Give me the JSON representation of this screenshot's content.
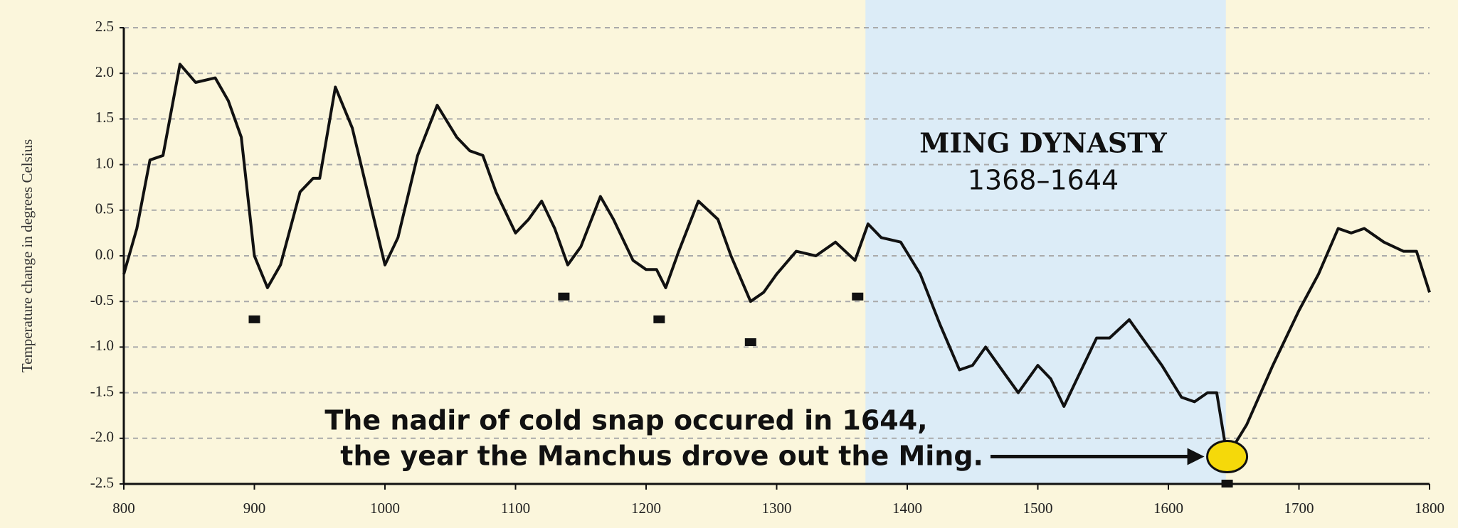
{
  "chart_data": {
    "type": "line",
    "y_label": "Temperature change in degrees Celsius",
    "annotations": {
      "dynasty": "MING DYNASTY",
      "dynasty_years": "1368–1644",
      "note_line1": "The nadir of cold snap occured in 1644,",
      "note_line2": "the year the Manchus drove out the Ming."
    },
    "shade": [
      1368,
      1644
    ],
    "shade_color": "#dcecf7",
    "x": [
      800,
      810,
      820,
      830,
      843,
      855,
      870,
      880,
      890,
      900,
      910,
      920,
      935,
      945,
      950,
      962,
      975,
      990,
      1000,
      1010,
      1025,
      1040,
      1055,
      1065,
      1075,
      1085,
      1100,
      1110,
      1120,
      1130,
      1140,
      1150,
      1165,
      1175,
      1190,
      1200,
      1208,
      1215,
      1225,
      1240,
      1255,
      1265,
      1280,
      1290,
      1300,
      1315,
      1330,
      1345,
      1360,
      1370,
      1380,
      1395,
      1410,
      1425,
      1440,
      1450,
      1460,
      1475,
      1485,
      1500,
      1510,
      1520,
      1530,
      1545,
      1555,
      1570,
      1580,
      1595,
      1610,
      1620,
      1630,
      1637,
      1645,
      1660,
      1680,
      1700,
      1715,
      1730,
      1740,
      1750,
      1765,
      1780,
      1790,
      1800
    ],
    "values": [
      -0.2,
      0.3,
      1.05,
      1.1,
      2.1,
      1.9,
      1.95,
      1.7,
      1.3,
      0.0,
      -0.35,
      -0.1,
      0.7,
      0.85,
      0.85,
      1.85,
      1.4,
      0.5,
      -0.1,
      0.2,
      1.1,
      1.65,
      1.3,
      1.15,
      1.1,
      0.7,
      0.25,
      0.4,
      0.6,
      0.3,
      -0.1,
      0.1,
      0.65,
      0.4,
      -0.05,
      -0.15,
      -0.15,
      -0.35,
      0.05,
      0.6,
      0.4,
      0.0,
      -0.5,
      -0.4,
      -0.2,
      0.05,
      0.0,
      0.15,
      -0.05,
      0.35,
      0.2,
      0.15,
      -0.2,
      -0.75,
      -1.25,
      -1.2,
      -1.0,
      -1.3,
      -1.5,
      -1.2,
      -1.35,
      -1.65,
      -1.35,
      -0.9,
      -0.9,
      -0.7,
      -0.9,
      -1.2,
      -1.55,
      -1.6,
      -1.5,
      -1.5,
      -2.2,
      -1.85,
      -1.2,
      -0.6,
      -0.2,
      0.3,
      0.25,
      0.3,
      0.15,
      0.05,
      0.05,
      -0.4
    ],
    "color": "#111111",
    "markers": {
      "x": [
        900,
        1137,
        1210,
        1280,
        1362,
        1645
      ],
      "values": [
        -0.7,
        -0.45,
        -0.7,
        -0.95,
        -0.45,
        -2.5
      ]
    },
    "highlight": {
      "x": 1645,
      "value": -2.2,
      "color": "#f5d90a"
    },
    "xlim": [
      800,
      1800
    ],
    "ylim": [
      -2.5,
      2.5
    ],
    "xticks": [
      800,
      900,
      1000,
      1100,
      1200,
      1300,
      1400,
      1500,
      1600,
      1700,
      1800
    ],
    "yticks": [
      -2.5,
      {
        "value": -2.0,
        "label": "-2.0"
      },
      -1.5,
      {
        "value": -1.0,
        "label": "-1.0"
      },
      -0.5,
      {
        "value": 0.0,
        "label": "0.0"
      },
      0.5,
      {
        "value": 1.0,
        "label": "1.0"
      },
      1.5,
      {
        "value": 2.0,
        "label": "2.0"
      },
      2.5
    ],
    "grid": true
  }
}
